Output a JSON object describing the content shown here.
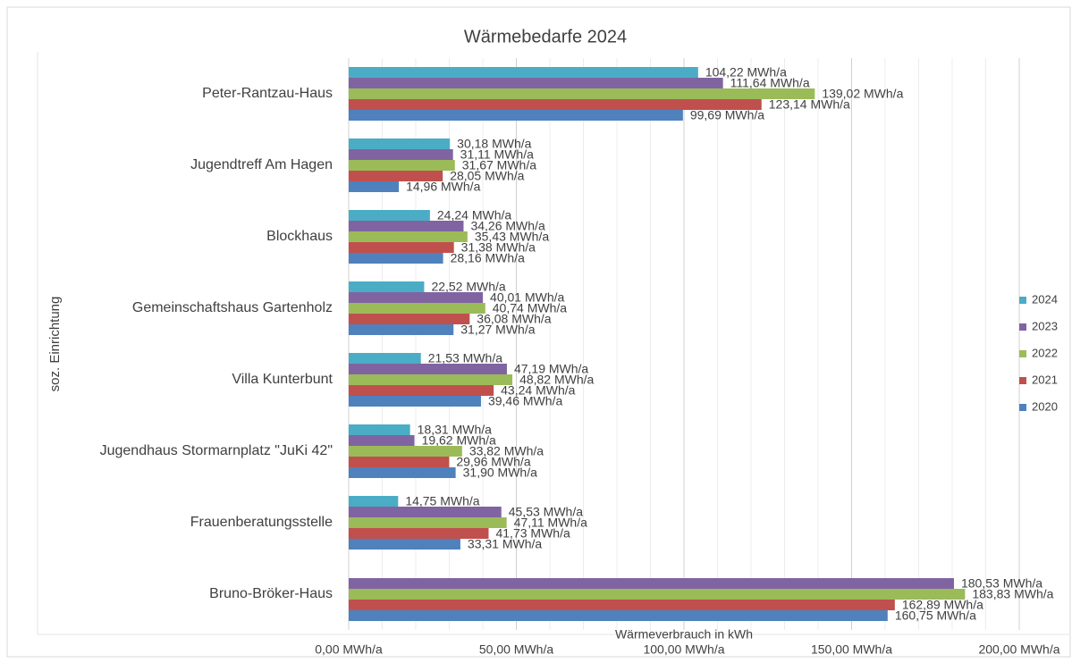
{
  "chart_data": {
    "type": "hbar",
    "title": "Wärmebedarfe 2024",
    "xlabel": "Wärmeverbrauch in kWh",
    "ylabel": "soz. Einrichtung",
    "categories": [
      "Peter-Rantzau-Haus",
      "Jugendtreff Am Hagen",
      "Blockhaus",
      "Gemeinschaftshaus Gartenholz",
      "Villa Kunterbunt",
      "Jugendhaus Stormarnplatz \"JuKi 42\"",
      "Frauenberatungsstelle",
      "Bruno-Bröker-Haus"
    ],
    "series": [
      {
        "name": "2024",
        "color": "#4bacc6",
        "values": [
          104.22,
          30.18,
          24.24,
          22.52,
          21.53,
          18.31,
          14.75,
          null
        ],
        "value_labels": [
          "104,22 MWh/a",
          "30,18 MWh/a",
          "24,24 MWh/a",
          "22,52 MWh/a",
          "21,53 MWh/a",
          "18,31 MWh/a",
          "14,75 MWh/a",
          null
        ]
      },
      {
        "name": "2023",
        "color": "#8064a2",
        "values": [
          111.64,
          31.11,
          34.26,
          40.01,
          47.19,
          19.62,
          45.53,
          180.53
        ],
        "value_labels": [
          "111,64 MWh/a",
          "31,11 MWh/a",
          "34,26 MWh/a",
          "40,01 MWh/a",
          "47,19 MWh/a",
          "19,62 MWh/a",
          "45,53 MWh/a",
          "180,53 MWh/a"
        ]
      },
      {
        "name": "2022",
        "color": "#9bbb59",
        "values": [
          139.02,
          31.67,
          35.43,
          40.74,
          48.82,
          33.82,
          47.11,
          183.83
        ],
        "value_labels": [
          "139,02 MWh/a",
          "31,67 MWh/a",
          "35,43 MWh/a",
          "40,74 MWh/a",
          "48,82 MWh/a",
          "33,82 MWh/a",
          "47,11 MWh/a",
          "183,83 MWh/a"
        ]
      },
      {
        "name": "2021",
        "color": "#c0504d",
        "values": [
          123.14,
          28.05,
          31.38,
          36.08,
          43.24,
          29.96,
          41.73,
          162.89
        ],
        "value_labels": [
          "123,14 MWh/a",
          "28,05 MWh/a",
          "31,38 MWh/a",
          "36,08 MWh/a",
          "43,24 MWh/a",
          "29,96 MWh/a",
          "41,73 MWh/a",
          "162,89 MWh/a"
        ]
      },
      {
        "name": "2020",
        "color": "#4f81bd",
        "values": [
          99.69,
          14.96,
          28.16,
          31.27,
          39.46,
          31.9,
          33.31,
          160.75
        ],
        "value_labels": [
          "99,69 MWh/a",
          "14,96 MWh/a",
          "28,16 MWh/a",
          "31,27 MWh/a",
          "39,46 MWh/a",
          "31,90 MWh/a",
          "33,31 MWh/a",
          "160,75 MWh/a"
        ]
      }
    ],
    "xlim": [
      0,
      200
    ],
    "xticks": [
      {
        "value": 0,
        "label": "0,00 MWh/a"
      },
      {
        "value": 50,
        "label": "50,00 MWh/a"
      },
      {
        "value": 100,
        "label": "100,00 MWh/a"
      },
      {
        "value": 150,
        "label": "150,00 MWh/a"
      },
      {
        "value": 200,
        "label": "200,00 MWh/a"
      }
    ],
    "grid": true,
    "legend": "right"
  }
}
